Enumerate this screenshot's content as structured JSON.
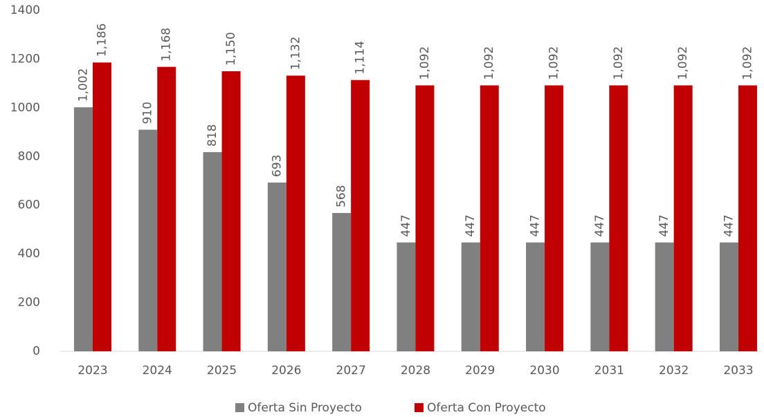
{
  "chart_data": {
    "type": "bar",
    "categories": [
      "2023",
      "2024",
      "2025",
      "2026",
      "2027",
      "2028",
      "2029",
      "2030",
      "2031",
      "2032",
      "2033"
    ],
    "series": [
      {
        "name": "Oferta Sin Proyecto",
        "color": "#808080",
        "values": [
          1002,
          910,
          818,
          693,
          568,
          447,
          447,
          447,
          447,
          447,
          447
        ],
        "value_labels": [
          "1,002",
          "910",
          "818",
          "693",
          "568",
          "447",
          "447",
          "447",
          "447",
          "447",
          "447"
        ]
      },
      {
        "name": "Oferta Con Proyecto",
        "color": "#c00000",
        "values": [
          1186,
          1168,
          1150,
          1132,
          1114,
          1092,
          1092,
          1092,
          1092,
          1092,
          1092
        ],
        "value_labels": [
          "1,186",
          "1,168",
          "1,150",
          "1,132",
          "1,114",
          "1,092",
          "1,092",
          "1,092",
          "1,092",
          "1,092",
          "1,092"
        ]
      }
    ],
    "ylim": [
      0,
      1400
    ],
    "yticks": [
      0,
      200,
      400,
      600,
      800,
      1000,
      1200,
      1400
    ],
    "grid": false,
    "legend": "bottom"
  }
}
